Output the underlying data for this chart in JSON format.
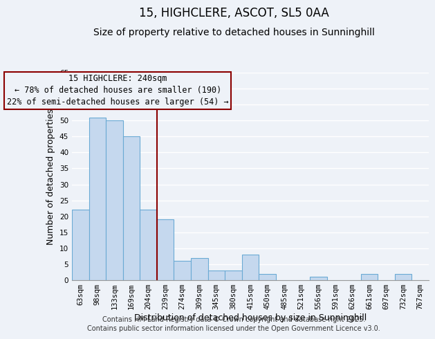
{
  "title": "15, HIGHCLERE, ASCOT, SL5 0AA",
  "subtitle": "Size of property relative to detached houses in Sunninghill",
  "xlabel": "Distribution of detached houses by size in Sunninghill",
  "ylabel": "Number of detached properties",
  "categories": [
    "63sqm",
    "98sqm",
    "133sqm",
    "169sqm",
    "204sqm",
    "239sqm",
    "274sqm",
    "309sqm",
    "345sqm",
    "380sqm",
    "415sqm",
    "450sqm",
    "485sqm",
    "521sqm",
    "556sqm",
    "591sqm",
    "626sqm",
    "661sqm",
    "697sqm",
    "732sqm",
    "767sqm"
  ],
  "values": [
    22,
    51,
    50,
    45,
    22,
    19,
    6,
    7,
    3,
    3,
    8,
    2,
    0,
    0,
    1,
    0,
    0,
    2,
    0,
    2,
    0
  ],
  "bar_color": "#c5d8ee",
  "bar_edge_color": "#6aaad4",
  "ylim": [
    0,
    65
  ],
  "yticks": [
    0,
    5,
    10,
    15,
    20,
    25,
    30,
    35,
    40,
    45,
    50,
    55,
    60,
    65
  ],
  "vline_color": "#8b0000",
  "annotation_title": "15 HIGHCLERE: 240sqm",
  "annotation_line1": "← 78% of detached houses are smaller (190)",
  "annotation_line2": "22% of semi-detached houses are larger (54) →",
  "annotation_box_color": "#8b0000",
  "footer1": "Contains HM Land Registry data © Crown copyright and database right 2025.",
  "footer2": "Contains public sector information licensed under the Open Government Licence v3.0.",
  "background_color": "#eef2f8",
  "grid_color": "#ffffff",
  "title_fontsize": 12,
  "subtitle_fontsize": 10,
  "axis_label_fontsize": 9,
  "tick_fontsize": 7.5,
  "annotation_fontsize": 8.5,
  "footer_fontsize": 7
}
